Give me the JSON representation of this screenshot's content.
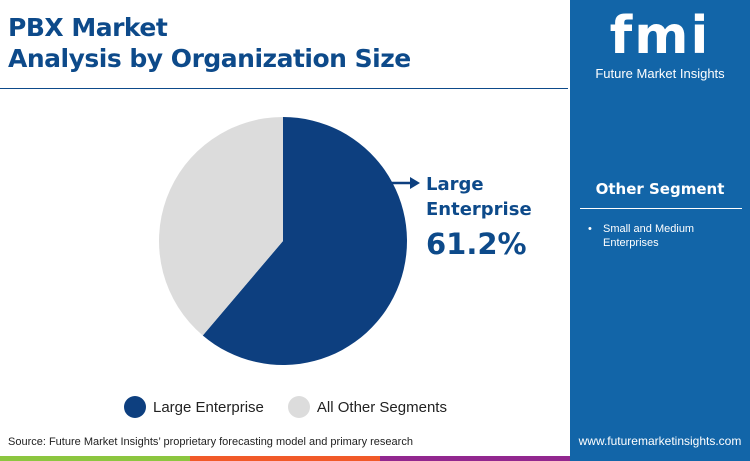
{
  "title_lines": [
    "PBX Market",
    "Analysis by Organization Size"
  ],
  "chart_data": {
    "type": "pie",
    "title": "PBX Market Analysis by Organization Size",
    "categories": [
      "Large Enterprise",
      "All Other Segments"
    ],
    "values": [
      61.2,
      38.8
    ],
    "colors": [
      "#0d3f7f",
      "#dcdcdc"
    ],
    "legend_position": "bottom",
    "callout": {
      "label_lines": [
        "Large",
        "Enterprise"
      ],
      "value": "61.2%"
    }
  },
  "source": "Source: Future Market Insights’ proprietary forecasting model and primary research",
  "sidebar": {
    "logo": "fmi",
    "logo_text": "Future Market Insights",
    "other_heading": "Other Segment",
    "other_items": [
      "Small and Medium Enterprises"
    ],
    "url": "www.futuremarketinsights.com",
    "color": "#1265a8"
  },
  "bottom_bar_colors": [
    "#8cc63f",
    "#f15a29",
    "#92278f",
    "#1265a8"
  ]
}
